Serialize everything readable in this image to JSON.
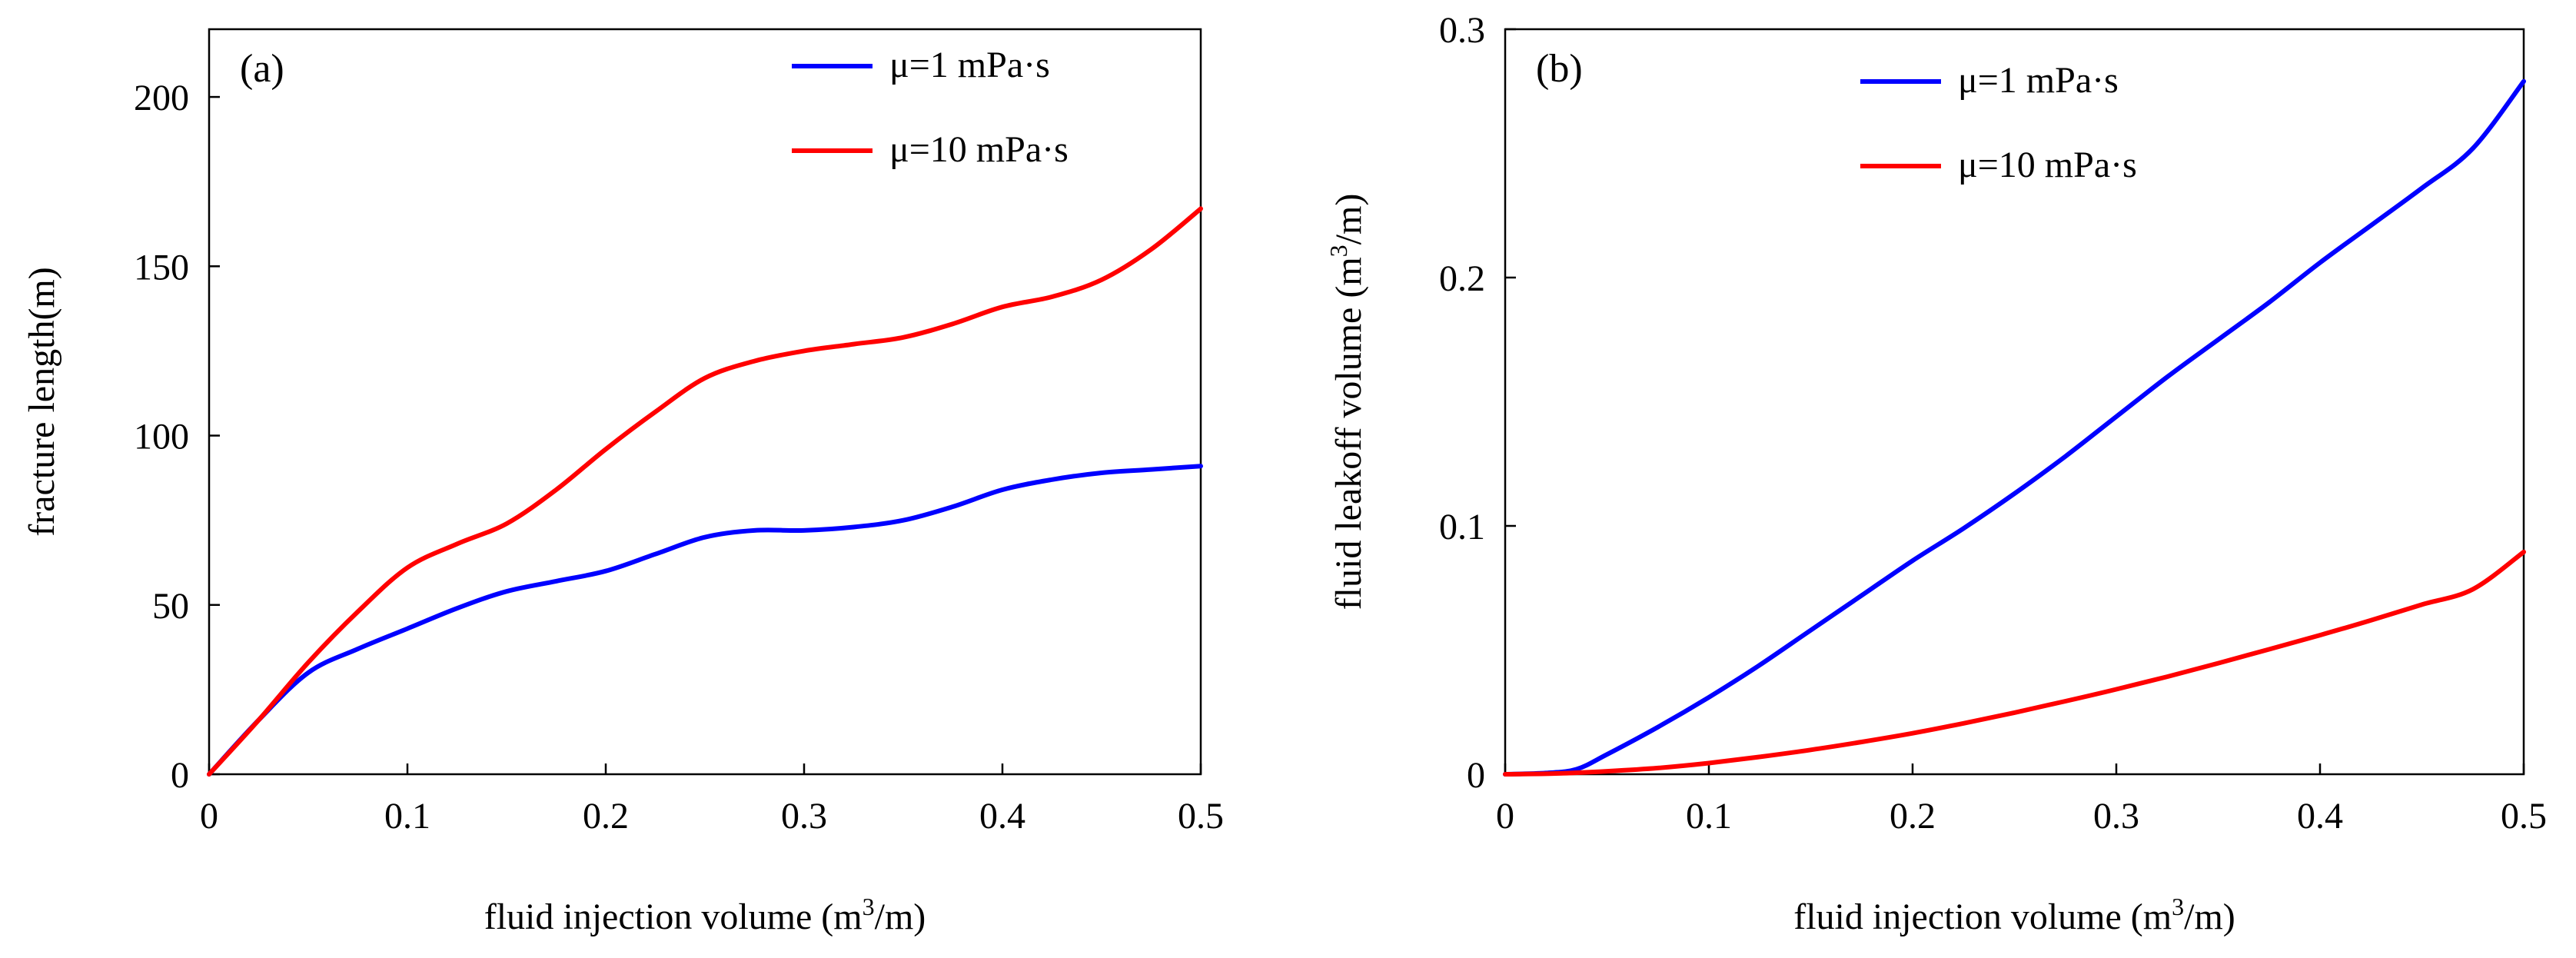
{
  "colors": {
    "series_1": "#0000ff",
    "series_2": "#ff0000",
    "axis": "#000000"
  },
  "chart_data": [
    {
      "panel_label": "(a)",
      "type": "line",
      "xlabel": "fluid injection volume (m³/m)",
      "ylabel": "fracture length(m)",
      "xlim": [
        0,
        0.5
      ],
      "ylim": [
        0,
        220
      ],
      "x_ticks": [
        "0",
        "0.1",
        "0.2",
        "0.3",
        "0.4",
        "0.5"
      ],
      "y_ticks": [
        "0",
        "50",
        "100",
        "150",
        "200"
      ],
      "x_tick_values": [
        0,
        0.1,
        0.2,
        0.3,
        0.4,
        0.5
      ],
      "y_tick_values": [
        0,
        50,
        100,
        150,
        200
      ],
      "legend_position": "top-right",
      "series": [
        {
          "name": "μ=1 mPa·s",
          "color": "#0000ff",
          "x": [
            0,
            0.025,
            0.05,
            0.075,
            0.1,
            0.125,
            0.15,
            0.175,
            0.2,
            0.225,
            0.25,
            0.275,
            0.3,
            0.325,
            0.35,
            0.375,
            0.4,
            0.425,
            0.45,
            0.475,
            0.5
          ],
          "y": [
            0,
            16,
            30,
            37,
            43,
            49,
            54,
            57,
            60,
            65,
            70,
            72,
            72,
            73,
            75,
            79,
            84,
            87,
            89,
            90,
            91
          ]
        },
        {
          "name": "μ=10 mPa·s",
          "color": "#ff0000",
          "x": [
            0,
            0.025,
            0.05,
            0.075,
            0.1,
            0.125,
            0.15,
            0.175,
            0.2,
            0.225,
            0.25,
            0.275,
            0.3,
            0.325,
            0.35,
            0.375,
            0.4,
            0.425,
            0.45,
            0.475,
            0.5
          ],
          "y": [
            0,
            16,
            33,
            48,
            61,
            68,
            74,
            84,
            96,
            107,
            117,
            122,
            125,
            127,
            129,
            133,
            138,
            141,
            146,
            155,
            167
          ]
        }
      ]
    },
    {
      "panel_label": "(b)",
      "type": "line",
      "xlabel": "fluid injection volume (m³/m)",
      "ylabel": "fluid leakoff volume (m³/m)",
      "xlim": [
        0,
        0.5
      ],
      "ylim": [
        0,
        0.3
      ],
      "x_ticks": [
        "0",
        "0.1",
        "0.2",
        "0.3",
        "0.4",
        "0.5"
      ],
      "y_ticks": [
        "0",
        "0.1",
        "0.2",
        "0.3"
      ],
      "x_tick_values": [
        0,
        0.1,
        0.2,
        0.3,
        0.4,
        0.5
      ],
      "y_tick_values": [
        0,
        0.1,
        0.2,
        0.3
      ],
      "legend_position": "top-center",
      "series": [
        {
          "name": "μ=1 mPa·s",
          "color": "#0000ff",
          "x": [
            0,
            0.02,
            0.035,
            0.05,
            0.075,
            0.1,
            0.125,
            0.15,
            0.175,
            0.2,
            0.225,
            0.25,
            0.275,
            0.3,
            0.325,
            0.35,
            0.375,
            0.4,
            0.425,
            0.45,
            0.475,
            0.5
          ],
          "y": [
            0,
            0.0005,
            0.002,
            0.008,
            0.019,
            0.031,
            0.044,
            0.058,
            0.072,
            0.086,
            0.099,
            0.113,
            0.128,
            0.144,
            0.16,
            0.175,
            0.19,
            0.206,
            0.221,
            0.236,
            0.252,
            0.279
          ]
        },
        {
          "name": "μ=10 mPa·s",
          "color": "#ff0000",
          "x": [
            0,
            0.025,
            0.05,
            0.075,
            0.1,
            0.125,
            0.15,
            0.175,
            0.2,
            0.225,
            0.25,
            0.275,
            0.3,
            0.325,
            0.35,
            0.375,
            0.4,
            0.425,
            0.45,
            0.475,
            0.5
          ],
          "y": [
            0,
            0.0003,
            0.0012,
            0.0025,
            0.0045,
            0.007,
            0.0098,
            0.013,
            0.0165,
            0.0205,
            0.0248,
            0.0294,
            0.0342,
            0.0393,
            0.0447,
            0.0503,
            0.056,
            0.062,
            0.0683,
            0.0745,
            0.0895
          ]
        }
      ]
    }
  ]
}
